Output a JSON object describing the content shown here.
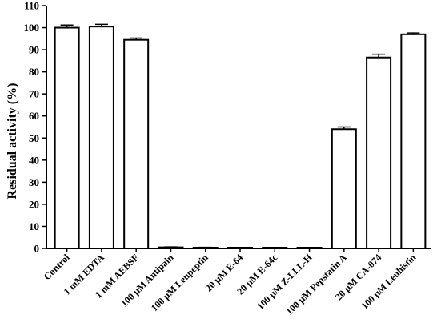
{
  "chart_data": {
    "type": "bar",
    "title": "",
    "xlabel": "",
    "ylabel": "Residual activity (%)",
    "ylim": [
      0,
      110
    ],
    "yticks": [
      0,
      10,
      20,
      30,
      40,
      50,
      60,
      70,
      80,
      90,
      100,
      110
    ],
    "grid": false,
    "legend": "none",
    "categories": [
      "Control",
      "1 mM EDTA",
      "1 mM AEBSF",
      "100 μM Antipain",
      "100 μM Leupeptin",
      "20 μM E-64",
      "20 μM E-64c",
      "100 μM Z-LLL-H",
      "100 μM Pepstatin A",
      "20 μM CA-074",
      "100 μM Leuhistin"
    ],
    "values": [
      100,
      100.5,
      94.5,
      0.5,
      0.3,
      0,
      0.2,
      0.3,
      54,
      86.5,
      97
    ],
    "errors": [
      1.2,
      1.0,
      0.8,
      0.2,
      0.2,
      0,
      0.1,
      0.1,
      1.0,
      1.5,
      0.6
    ],
    "colors": {
      "bar_fill": "#ffffff",
      "bar_stroke": "#000000"
    }
  }
}
